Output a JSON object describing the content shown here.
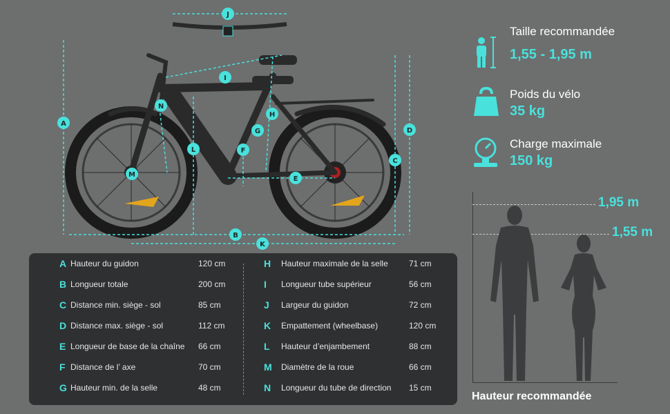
{
  "specs": [
    {
      "title": "Taille recommandée",
      "value": "1,55 - 1,95 m",
      "icon": "person-height-icon"
    },
    {
      "title": "Poids du vélo",
      "value": "35 kg",
      "icon": "weight-kettlebell-icon"
    },
    {
      "title": "Charge maximale",
      "value": "150 kg",
      "icon": "scale-gauge-icon"
    }
  ],
  "diagram_letters": [
    "A",
    "B",
    "C",
    "D",
    "E",
    "F",
    "G",
    "H",
    "I",
    "J",
    "K",
    "L",
    "M",
    "N"
  ],
  "table_left": [
    {
      "letter": "A",
      "name": "Hauteur du guidon",
      "value": "120 cm"
    },
    {
      "letter": "B",
      "name": "Longueur totale",
      "value": "200 cm"
    },
    {
      "letter": "C",
      "name": "Distance min. siège - sol",
      "value": "85 cm"
    },
    {
      "letter": "D",
      "name": "Distance max. siège - sol",
      "value": "112 cm"
    },
    {
      "letter": "E",
      "name": "Longueur de base de la chaîne",
      "value": "66 cm"
    },
    {
      "letter": "F",
      "name": "Distance de l’ axe",
      "value": "70 cm"
    },
    {
      "letter": "G",
      "name": "Hauteur min. de la selle",
      "value": "48 cm"
    }
  ],
  "table_right": [
    {
      "letter": "H",
      "name": "Hauteur maximale de la selle",
      "value": "71 cm"
    },
    {
      "letter": "I",
      "name": "Longueur tube supérieur",
      "value": "56 cm"
    },
    {
      "letter": "J",
      "name": "Largeur du guidon",
      "value": "72 cm"
    },
    {
      "letter": "K",
      "name": "Empattement (wheelbase)",
      "value": "120 cm"
    },
    {
      "letter": "L",
      "name": "Hauteur d’enjambement",
      "value": "88 cm"
    },
    {
      "letter": "M",
      "name": "Diamètre de la roue",
      "value": "66 cm"
    },
    {
      "letter": "N",
      "name": "Longueur du tube de direction",
      "value": "15 cm"
    }
  ],
  "height_marks": {
    "top": "1,95 m",
    "bottom": "1,55 m"
  },
  "caption": "Hauteur recommandée",
  "colors": {
    "accent": "#49e1dc",
    "background": "#6d6e6e",
    "panel": "#2f3031"
  }
}
